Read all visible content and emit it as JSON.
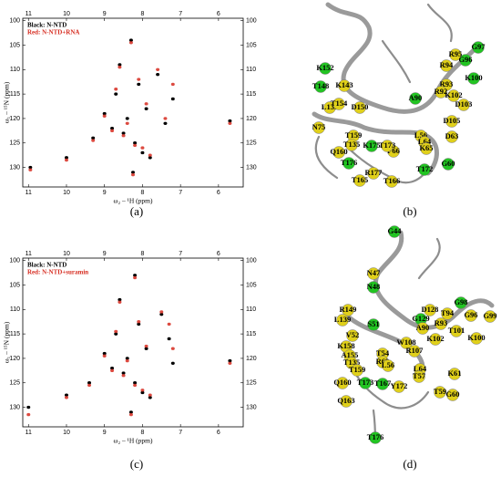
{
  "chart_data": [
    {
      "type": "scatter",
      "xlabel": "ω₂ – ¹H (ppm)",
      "ylabel": "ω₁ – ¹⁵N (ppm)",
      "xlim": [
        11.15,
        5.35
      ],
      "ylim": [
        99.5,
        134
      ],
      "xticks": [
        11,
        10,
        9,
        8,
        7,
        6
      ],
      "yticks": [
        100,
        105,
        110,
        115,
        120,
        125,
        130
      ],
      "x": [
        8.3,
        8.6,
        8.1,
        7.9,
        8.4,
        8.8,
        7.6,
        8.2,
        8.0,
        7.2,
        9.0,
        8.5,
        7.8,
        10.0,
        10.95,
        5.7,
        8.7,
        9.3,
        7.4,
        8.25
      ],
      "series": [
        {
          "name": "Black: N-NTD",
          "color": "#000000",
          "values": [
            104,
            109,
            113,
            118,
            120,
            122,
            111,
            125,
            127,
            116,
            119,
            123,
            128,
            128,
            130,
            120.5,
            115,
            124,
            121,
            131
          ]
        },
        {
          "name": "Red: N-NTD+RNA",
          "color": "#d62a1e",
          "values": [
            104.5,
            109.5,
            112,
            117,
            121,
            122.5,
            110,
            125.5,
            126,
            113,
            119.5,
            123.5,
            127.5,
            128.5,
            130.5,
            121,
            114,
            124.5,
            120,
            131.5
          ]
        }
      ]
    },
    {
      "type": "scatter",
      "xlabel": "ω₂ – ¹H (ppm)",
      "ylabel": "ω₁ – ¹⁵N (ppm)",
      "xlim": [
        11.15,
        5.35
      ],
      "ylim": [
        99.5,
        134
      ],
      "xticks": [
        11,
        10,
        9,
        8,
        7,
        6
      ],
      "yticks": [
        100,
        105,
        110,
        115,
        120,
        125,
        130
      ],
      "x": [
        8.2,
        8.6,
        8.1,
        7.9,
        8.4,
        8.8,
        7.5,
        8.2,
        8.0,
        7.3,
        9.0,
        8.5,
        7.8,
        10.0,
        11.0,
        5.7,
        8.7,
        9.4,
        7.2,
        8.3
      ],
      "series": [
        {
          "name": "Black: N-NTD",
          "color": "#000000",
          "values": [
            103,
            108,
            113,
            118,
            120,
            122,
            111,
            125,
            127,
            116,
            119,
            123,
            128,
            127.5,
            130,
            120.5,
            115,
            125,
            121,
            131
          ]
        },
        {
          "name": "Red: N-NTD+suramin",
          "color": "#d62a1e",
          "values": [
            103.5,
            108.5,
            112.5,
            117.5,
            120.5,
            122.5,
            110.5,
            125.5,
            126.5,
            113,
            119.5,
            123.5,
            127.5,
            128,
            131.5,
            121,
            114.5,
            125.5,
            118,
            131.5
          ]
        }
      ]
    }
  ],
  "structures": [
    {
      "residues": [
        {
          "label": "K152",
          "color": "#22c422"
        },
        {
          "label": "T148",
          "color": "#22c422"
        },
        {
          "label": "K143",
          "color": "#e0d01a"
        },
        {
          "label": "L139",
          "color": "#e0d01a"
        },
        {
          "label": "N75",
          "color": "#e0d01a"
        },
        {
          "label": "T154",
          "color": "#e0d01a"
        },
        {
          "label": "D150",
          "color": "#e0d01a"
        },
        {
          "label": "G97",
          "color": "#22c422"
        },
        {
          "label": "R95",
          "color": "#e0d01a"
        },
        {
          "label": "G96",
          "color": "#22c422"
        },
        {
          "label": "R94",
          "color": "#e0d01a"
        },
        {
          "label": "K100",
          "color": "#22c422"
        },
        {
          "label": "R93",
          "color": "#e0d01a"
        },
        {
          "label": "R92",
          "color": "#e0d01a"
        },
        {
          "label": "K102",
          "color": "#e0d01a"
        },
        {
          "label": "D103",
          "color": "#e0d01a"
        },
        {
          "label": "A90",
          "color": "#22c422"
        },
        {
          "label": "D105",
          "color": "#e0d01a"
        },
        {
          "label": "L56",
          "color": "#e0d01a"
        },
        {
          "label": "D63",
          "color": "#e0d01a"
        },
        {
          "label": "L64",
          "color": "#e0d01a"
        },
        {
          "label": "K65",
          "color": "#e0d01a"
        },
        {
          "label": "F66",
          "color": "#e0d01a"
        },
        {
          "label": "G60",
          "color": "#22c422"
        },
        {
          "label": "T159",
          "color": "#e0d01a"
        },
        {
          "label": "T135",
          "color": "#e0d01a"
        },
        {
          "label": "K175",
          "color": "#22c422"
        },
        {
          "label": "T173",
          "color": "#e0d01a"
        },
        {
          "label": "Q160",
          "color": "#e0d01a"
        },
        {
          "label": "T176",
          "color": "#22c422"
        },
        {
          "label": "R177",
          "color": "#e0d01a"
        },
        {
          "label": "T166",
          "color": "#e0d01a"
        },
        {
          "label": "T165",
          "color": "#e0d01a"
        },
        {
          "label": "T172",
          "color": "#22c422"
        }
      ]
    },
    {
      "residues": [
        {
          "label": "G44",
          "color": "#22c422"
        },
        {
          "label": "N47",
          "color": "#e0d01a"
        },
        {
          "label": "N48",
          "color": "#22c422"
        },
        {
          "label": "R149",
          "color": "#e0d01a"
        },
        {
          "label": "L139",
          "color": "#e0d01a"
        },
        {
          "label": "D128",
          "color": "#e0d01a"
        },
        {
          "label": "G129",
          "color": "#22c422"
        },
        {
          "label": "G98",
          "color": "#22c422"
        },
        {
          "label": "S51",
          "color": "#22c422"
        },
        {
          "label": "T94",
          "color": "#e0d01a"
        },
        {
          "label": "G96",
          "color": "#e0d01a"
        },
        {
          "label": "G99",
          "color": "#e0d01a"
        },
        {
          "label": "A90",
          "color": "#e0d01a"
        },
        {
          "label": "R93",
          "color": "#e0d01a"
        },
        {
          "label": "V52",
          "color": "#e0d01a"
        },
        {
          "label": "K102",
          "color": "#e0d01a"
        },
        {
          "label": "T101",
          "color": "#e0d01a"
        },
        {
          "label": "K100",
          "color": "#e0d01a"
        },
        {
          "label": "K158",
          "color": "#e0d01a"
        },
        {
          "label": "W108",
          "color": "#e0d01a"
        },
        {
          "label": "R107",
          "color": "#e0d01a"
        },
        {
          "label": "A155",
          "color": "#e0d01a"
        },
        {
          "label": "T54",
          "color": "#e0d01a"
        },
        {
          "label": "R68",
          "color": "#e0d01a"
        },
        {
          "label": "L64",
          "color": "#e0d01a"
        },
        {
          "label": "T57",
          "color": "#e0d01a"
        },
        {
          "label": "T135",
          "color": "#e0d01a"
        },
        {
          "label": "T159",
          "color": "#e0d01a"
        },
        {
          "label": "L56",
          "color": "#e0d01a"
        },
        {
          "label": "K61",
          "color": "#e0d01a"
        },
        {
          "label": "Q160",
          "color": "#e0d01a"
        },
        {
          "label": "T173",
          "color": "#22c422"
        },
        {
          "label": "T167",
          "color": "#22c422"
        },
        {
          "label": "Y172",
          "color": "#e0d01a"
        },
        {
          "label": "T59",
          "color": "#e0d01a"
        },
        {
          "label": "G60",
          "color": "#e0d01a"
        },
        {
          "label": "Q163",
          "color": "#e0d01a"
        },
        {
          "label": "T176",
          "color": "#22c422"
        }
      ]
    }
  ],
  "panel_labels": [
    "(a)",
    "(b)",
    "(c)",
    "(d)"
  ]
}
